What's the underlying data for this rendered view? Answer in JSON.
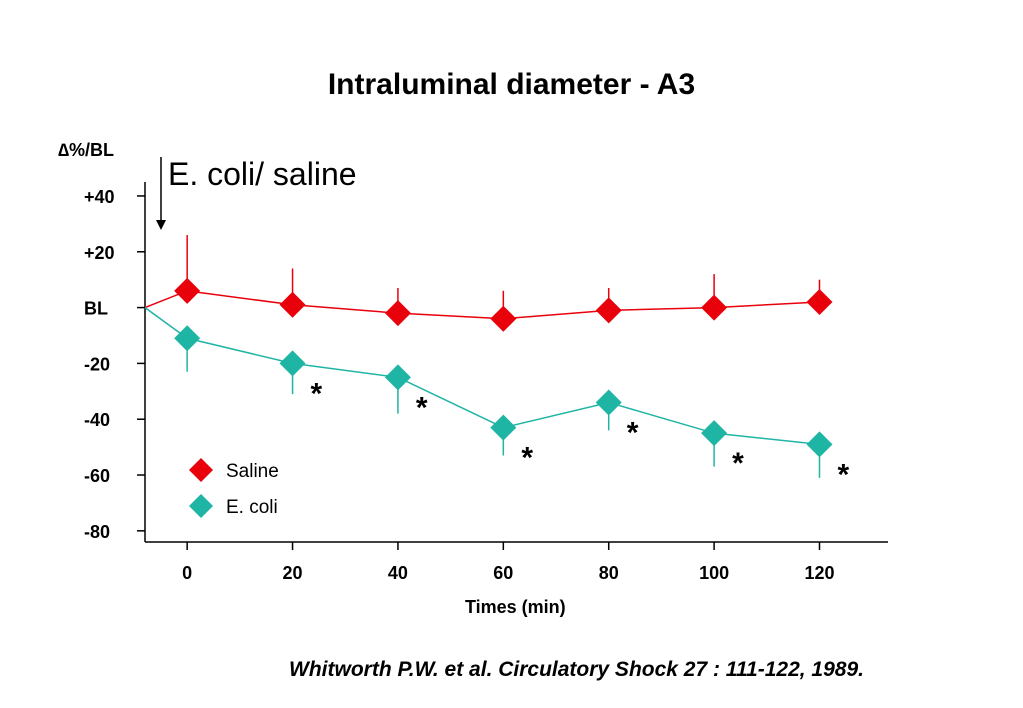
{
  "chart_data": {
    "type": "line",
    "title": "Intraluminal diameter - A3",
    "ylabel": "∆%/BL",
    "xlabel": "Times (min)",
    "annotation": "E. coli/ saline",
    "x": [
      0,
      20,
      40,
      60,
      80,
      100,
      120
    ],
    "x_ticks": [
      0,
      20,
      40,
      60,
      80,
      100,
      120
    ],
    "xlim": [
      -8,
      133
    ],
    "ylim": [
      -84,
      45
    ],
    "y_ticks": [
      {
        "value": 40,
        "label": "+40"
      },
      {
        "value": 20,
        "label": "+20"
      },
      {
        "value": 0,
        "label": "BL"
      },
      {
        "value": -20,
        "label": "-20"
      },
      {
        "value": -40,
        "label": "-40"
      },
      {
        "value": -60,
        "label": "-60"
      },
      {
        "value": -80,
        "label": "-80"
      }
    ],
    "baseline_start": {
      "x": -8,
      "y": 0
    },
    "series": [
      {
        "name": "Saline",
        "color": "#e8000b",
        "marker": "diamond",
        "values": [
          6,
          1,
          -2,
          -4,
          -1,
          0,
          2
        ],
        "error_dir": "up",
        "error": [
          20,
          13,
          9,
          10,
          8,
          12,
          8
        ]
      },
      {
        "name": "E. coli",
        "color": "#1fb5a5",
        "marker": "diamond",
        "values": [
          -11,
          -20,
          -25,
          -43,
          -34,
          -45,
          -49
        ],
        "error_dir": "down",
        "error": [
          12,
          11,
          13,
          10,
          10,
          12,
          12
        ]
      }
    ],
    "significance_marker": "*",
    "significant_x": [
      20,
      40,
      60,
      80,
      100,
      120
    ],
    "legend_position": "bottom-left"
  },
  "citation": "Whitworth P.W. et al. Circulatory Shock 27 : 111-122, 1989."
}
